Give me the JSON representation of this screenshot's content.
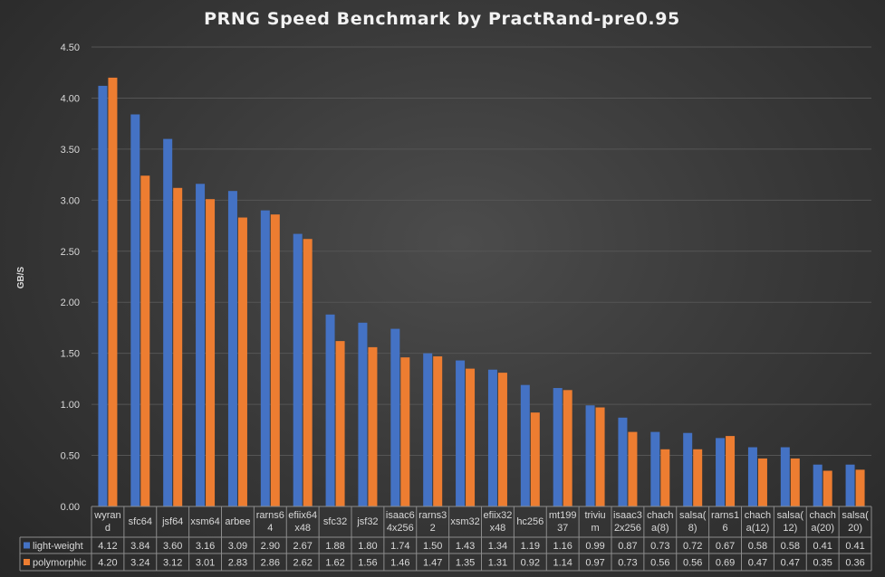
{
  "chart_data": {
    "type": "bar",
    "title": "PRNG Speed Benchmark  by PractRand-pre0.95",
    "ylabel": "GB/S",
    "xlabel": "",
    "ylim": [
      0,
      4.5
    ],
    "yticks": [
      "0.00",
      "0.50",
      "1.00",
      "1.50",
      "2.00",
      "2.50",
      "3.00",
      "3.50",
      "4.00",
      "4.50"
    ],
    "grid": true,
    "legend_placement": "data-table-left",
    "categories": [
      [
        "wyran",
        "d"
      ],
      [
        "sfc64"
      ],
      [
        "jsf64"
      ],
      [
        "xsm64"
      ],
      [
        "arbee"
      ],
      [
        "rarns6",
        "4"
      ],
      [
        "efiix64",
        "x48"
      ],
      [
        "sfc32"
      ],
      [
        "jsf32"
      ],
      [
        "isaac6",
        "4x256"
      ],
      [
        "rarns3",
        "2"
      ],
      [
        "xsm32"
      ],
      [
        "efiix32",
        "x48"
      ],
      [
        "hc256"
      ],
      [
        "mt199",
        "37"
      ],
      [
        "triviu",
        "m"
      ],
      [
        "isaac3",
        "2x256"
      ],
      [
        "chach",
        "a(8)"
      ],
      [
        "salsa(",
        "8)"
      ],
      [
        "rarns1",
        "6"
      ],
      [
        "chach",
        "a(12)"
      ],
      [
        "salsa(",
        "12)"
      ],
      [
        "chach",
        "a(20)"
      ],
      [
        "salsa(",
        "20)"
      ]
    ],
    "series": [
      {
        "name": "light-weight",
        "color": "#4472c4",
        "values": [
          4.12,
          3.84,
          3.6,
          3.16,
          3.09,
          2.9,
          2.67,
          1.88,
          1.8,
          1.74,
          1.5,
          1.43,
          1.34,
          1.19,
          1.16,
          0.99,
          0.87,
          0.73,
          0.72,
          0.67,
          0.58,
          0.58,
          0.41,
          0.41
        ],
        "labels": [
          "4.12",
          "3.84",
          "3.60",
          "3.16",
          "3.09",
          "2.90",
          "2.67",
          "1.88",
          "1.80",
          "1.74",
          "1.50",
          "1.43",
          "1.34",
          "1.19",
          "1.16",
          "0.99",
          "0.87",
          "0.73",
          "0.72",
          "0.67",
          "0.58",
          "0.58",
          "0.41",
          "0.41"
        ]
      },
      {
        "name": "polymorphic",
        "color": "#ed7d31",
        "values": [
          4.2,
          3.24,
          3.12,
          3.01,
          2.83,
          2.86,
          2.62,
          1.62,
          1.56,
          1.46,
          1.47,
          1.35,
          1.31,
          0.92,
          1.14,
          0.97,
          0.73,
          0.56,
          0.56,
          0.69,
          0.47,
          0.47,
          0.35,
          0.36
        ],
        "labels": [
          "4.20",
          "3.24",
          "3.12",
          "3.01",
          "2.83",
          "2.86",
          "2.62",
          "1.62",
          "1.56",
          "1.46",
          "1.47",
          "1.35",
          "1.31",
          "0.92",
          "1.14",
          "0.97",
          "0.73",
          "0.56",
          "0.56",
          "0.69",
          "0.47",
          "0.47",
          "0.35",
          "0.36"
        ]
      }
    ]
  }
}
